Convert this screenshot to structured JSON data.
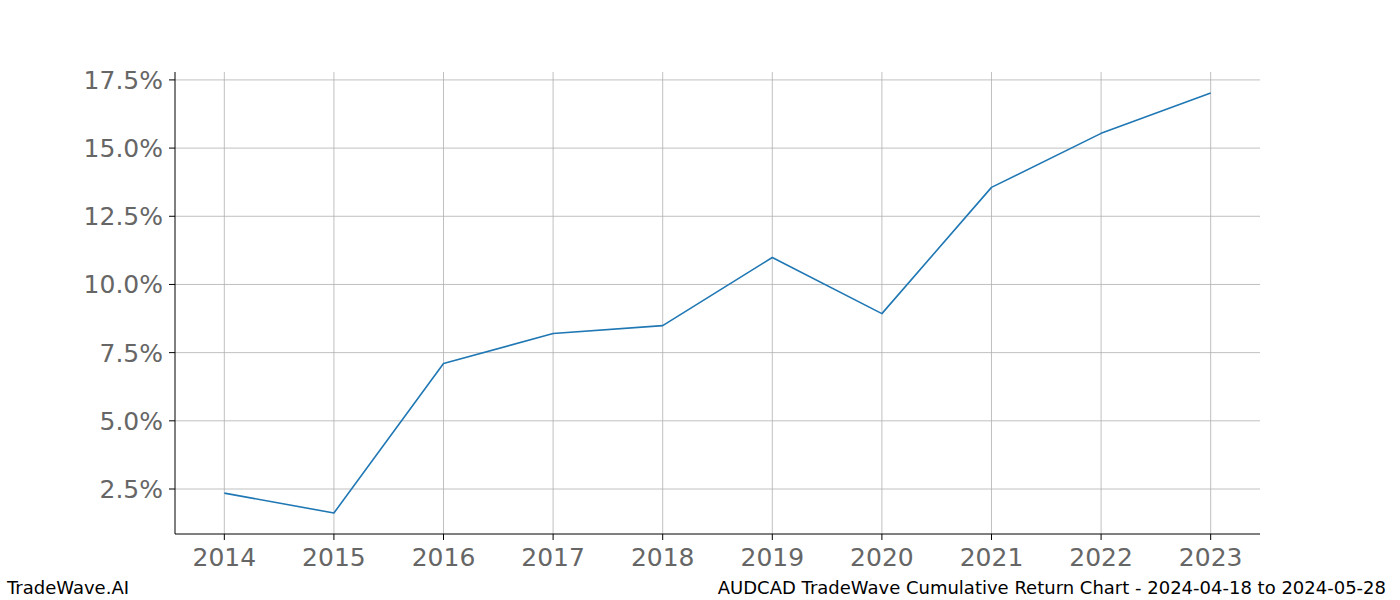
{
  "chart_data": {
    "type": "line",
    "title": "AUDCAD TradeWave Cumulative Return Chart - 2024-04-18 to 2024-05-28",
    "annotations": [
      "TradeWave.AI"
    ],
    "x": [
      2014,
      2015,
      2016,
      2017,
      2018,
      2019,
      2020,
      2021,
      2022,
      2023
    ],
    "values": [
      2.35,
      1.62,
      7.1,
      8.2,
      8.49,
      10.99,
      8.93,
      13.56,
      15.54,
      17.02
    ],
    "color": "#1f77b4",
    "xlim": [
      2013.55,
      2023.45
    ],
    "xticks": [
      2014,
      2015,
      2016,
      2017,
      2018,
      2019,
      2020,
      2021,
      2022,
      2023
    ],
    "ylim": [
      0.85,
      17.79
    ],
    "yticks": [
      {
        "value": 2.5,
        "label": "2.5%"
      },
      {
        "value": 5,
        "label": "5.0%"
      },
      {
        "value": 7.5,
        "label": "7.5%"
      },
      {
        "value": 10,
        "label": "10.0%"
      },
      {
        "value": 12.5,
        "label": "12.5%"
      },
      {
        "value": 15,
        "label": "15.0%"
      },
      {
        "value": 17.5,
        "label": "17.5%"
      }
    ],
    "grid": true
  }
}
